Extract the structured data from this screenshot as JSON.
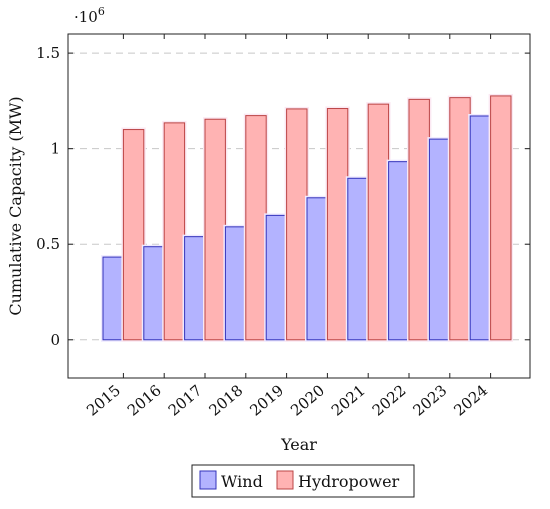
{
  "chart_data": {
    "type": "bar",
    "categories": [
      "2015",
      "2016",
      "2017",
      "2018",
      "2019",
      "2020",
      "2021",
      "2022",
      "2023",
      "2024"
    ],
    "series": [
      {
        "name": "Wind",
        "color": "#b3b3ff",
        "stroke": "#3333bb",
        "values": [
          432680,
          487000,
          539600,
          591000,
          651000,
          743000,
          845000,
          932000,
          1050000,
          1171000
        ]
      },
      {
        "name": "Hydropower",
        "color": "#ffb3b3",
        "stroke": "#bb4444",
        "values": [
          1100000,
          1135000,
          1154000,
          1173000,
          1208000,
          1210000,
          1233000,
          1258000,
          1267000,
          1276000
        ]
      }
    ],
    "xlabel": "Year",
    "ylabel": "Cumulative Capacity (MW)",
    "ylim": [
      -200000,
      1600000
    ],
    "yticks": [
      0,
      0.5,
      1,
      1.5
    ],
    "ytick_labels": [
      "0",
      "0.5",
      "1",
      "1.5"
    ],
    "y_multiplier": "·10",
    "y_multiplier_exp": "6",
    "grid": "horizontal-dashed",
    "legend": "bottom-center"
  }
}
